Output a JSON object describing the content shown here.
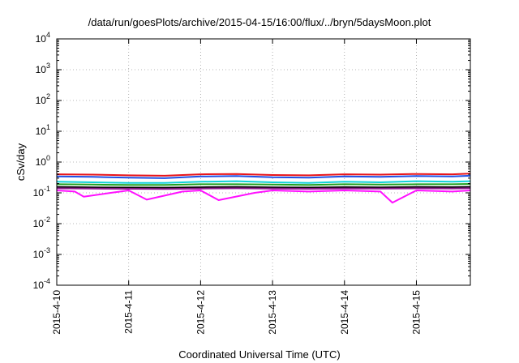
{
  "chart_data": {
    "type": "line",
    "title": "/data/run/goesPlots/archive/2015-04-15/16:00/flux/../bryn/5daysMoon.plot",
    "xlabel": "Coordinated Universal Time (UTC)",
    "ylabel": "cSv/day",
    "yscale": "log",
    "ylim": [
      0.0001,
      10000
    ],
    "xlim": [
      "2015-04-10 00:00",
      "2015-04-15 18:00"
    ],
    "grid": true,
    "x_tick_labels": [
      "2015-4-10",
      "2015-4-11",
      "2015-4-12",
      "2015-4-13",
      "2015-4-14",
      "2015-4-15"
    ],
    "y_ticks": [
      {
        "value": 0.0001,
        "mantissa": "10",
        "exp": "-4"
      },
      {
        "value": 0.001,
        "mantissa": "10",
        "exp": "-3"
      },
      {
        "value": 0.01,
        "mantissa": "10",
        "exp": "-2"
      },
      {
        "value": 0.1,
        "mantissa": "10",
        "exp": "-1"
      },
      {
        "value": 1,
        "mantissa": "10",
        "exp": "0"
      },
      {
        "value": 10,
        "mantissa": "10",
        "exp": "1"
      },
      {
        "value": 100,
        "mantissa": "10",
        "exp": "2"
      },
      {
        "value": 1000,
        "mantissa": "10",
        "exp": "3"
      },
      {
        "value": 10000,
        "mantissa": "10",
        "exp": "4"
      }
    ],
    "series": [
      {
        "color": "#e8141a",
        "x": [
          "2015-04-10 00:00",
          "2015-04-10 12:00",
          "2015-04-11 00:00",
          "2015-04-11 12:00",
          "2015-04-12 00:00",
          "2015-04-12 12:00",
          "2015-04-13 00:00",
          "2015-04-13 12:00",
          "2015-04-14 00:00",
          "2015-04-14 12:00",
          "2015-04-15 00:00",
          "2015-04-15 12:00",
          "2015-04-15 18:00"
        ],
        "y": [
          0.4,
          0.39,
          0.37,
          0.36,
          0.4,
          0.41,
          0.38,
          0.37,
          0.4,
          0.39,
          0.41,
          0.4,
          0.42
        ]
      },
      {
        "color": "#2050e6",
        "x": [
          "2015-04-10 00:00",
          "2015-04-10 12:00",
          "2015-04-11 00:00",
          "2015-04-11 12:00",
          "2015-04-12 00:00",
          "2015-04-12 12:00",
          "2015-04-13 00:00",
          "2015-04-13 12:00",
          "2015-04-14 00:00",
          "2015-04-14 12:00",
          "2015-04-15 00:00",
          "2015-04-15 12:00",
          "2015-04-15 18:00"
        ],
        "y": [
          0.34,
          0.33,
          0.31,
          0.3,
          0.34,
          0.35,
          0.32,
          0.31,
          0.34,
          0.33,
          0.35,
          0.34,
          0.36
        ]
      },
      {
        "color": "#10d0d8",
        "x": [
          "2015-04-10 00:00",
          "2015-04-10 12:00",
          "2015-04-11 00:00",
          "2015-04-11 12:00",
          "2015-04-12 00:00",
          "2015-04-12 12:00",
          "2015-04-13 00:00",
          "2015-04-13 12:00",
          "2015-04-14 00:00",
          "2015-04-14 12:00",
          "2015-04-15 00:00",
          "2015-04-15 12:00",
          "2015-04-15 18:00"
        ],
        "y": [
          0.23,
          0.22,
          0.21,
          0.21,
          0.23,
          0.24,
          0.22,
          0.21,
          0.23,
          0.22,
          0.24,
          0.23,
          0.24
        ]
      },
      {
        "color": "#20a020",
        "x": [
          "2015-04-10 00:00",
          "2015-04-10 12:00",
          "2015-04-11 00:00",
          "2015-04-11 12:00",
          "2015-04-12 00:00",
          "2015-04-12 12:00",
          "2015-04-13 00:00",
          "2015-04-13 12:00",
          "2015-04-14 00:00",
          "2015-04-14 12:00",
          "2015-04-15 00:00",
          "2015-04-15 12:00",
          "2015-04-15 18:00"
        ],
        "y": [
          0.19,
          0.185,
          0.18,
          0.18,
          0.19,
          0.19,
          0.185,
          0.18,
          0.19,
          0.185,
          0.19,
          0.19,
          0.195
        ]
      },
      {
        "color": "#000000",
        "x": [
          "2015-04-10 00:00",
          "2015-04-10 12:00",
          "2015-04-11 00:00",
          "2015-04-11 12:00",
          "2015-04-12 00:00",
          "2015-04-12 12:00",
          "2015-04-13 00:00",
          "2015-04-13 12:00",
          "2015-04-14 00:00",
          "2015-04-14 12:00",
          "2015-04-15 00:00",
          "2015-04-15 12:00",
          "2015-04-15 18:00"
        ],
        "y": [
          0.155,
          0.15,
          0.148,
          0.147,
          0.152,
          0.155,
          0.15,
          0.148,
          0.153,
          0.15,
          0.155,
          0.153,
          0.157
        ]
      },
      {
        "color": "#8a1a8a",
        "x": [
          "2015-04-10 00:00",
          "2015-04-10 12:00",
          "2015-04-11 00:00",
          "2015-04-11 12:00",
          "2015-04-12 00:00",
          "2015-04-12 12:00",
          "2015-04-13 00:00",
          "2015-04-13 12:00",
          "2015-04-14 00:00",
          "2015-04-14 12:00",
          "2015-04-15 00:00",
          "2015-04-15 12:00",
          "2015-04-15 18:00"
        ],
        "y": [
          0.14,
          0.137,
          0.135,
          0.134,
          0.138,
          0.14,
          0.137,
          0.135,
          0.139,
          0.137,
          0.14,
          0.139,
          0.142
        ]
      },
      {
        "color": "#ff10ff",
        "x": [
          "2015-04-10 00:00",
          "2015-04-10 06:00",
          "2015-04-10 09:00",
          "2015-04-10 18:00",
          "2015-04-11 00:00",
          "2015-04-11 06:00",
          "2015-04-11 18:00",
          "2015-04-12 00:00",
          "2015-04-12 06:00",
          "2015-04-12 18:00",
          "2015-04-13 00:00",
          "2015-04-13 12:00",
          "2015-04-14 00:00",
          "2015-04-14 12:00",
          "2015-04-14 16:00",
          "2015-04-15 00:00",
          "2015-04-15 12:00",
          "2015-04-15 18:00"
        ],
        "y": [
          0.12,
          0.11,
          0.075,
          0.1,
          0.12,
          0.06,
          0.11,
          0.12,
          0.058,
          0.1,
          0.12,
          0.11,
          0.12,
          0.11,
          0.048,
          0.12,
          0.11,
          0.12
        ]
      }
    ]
  }
}
